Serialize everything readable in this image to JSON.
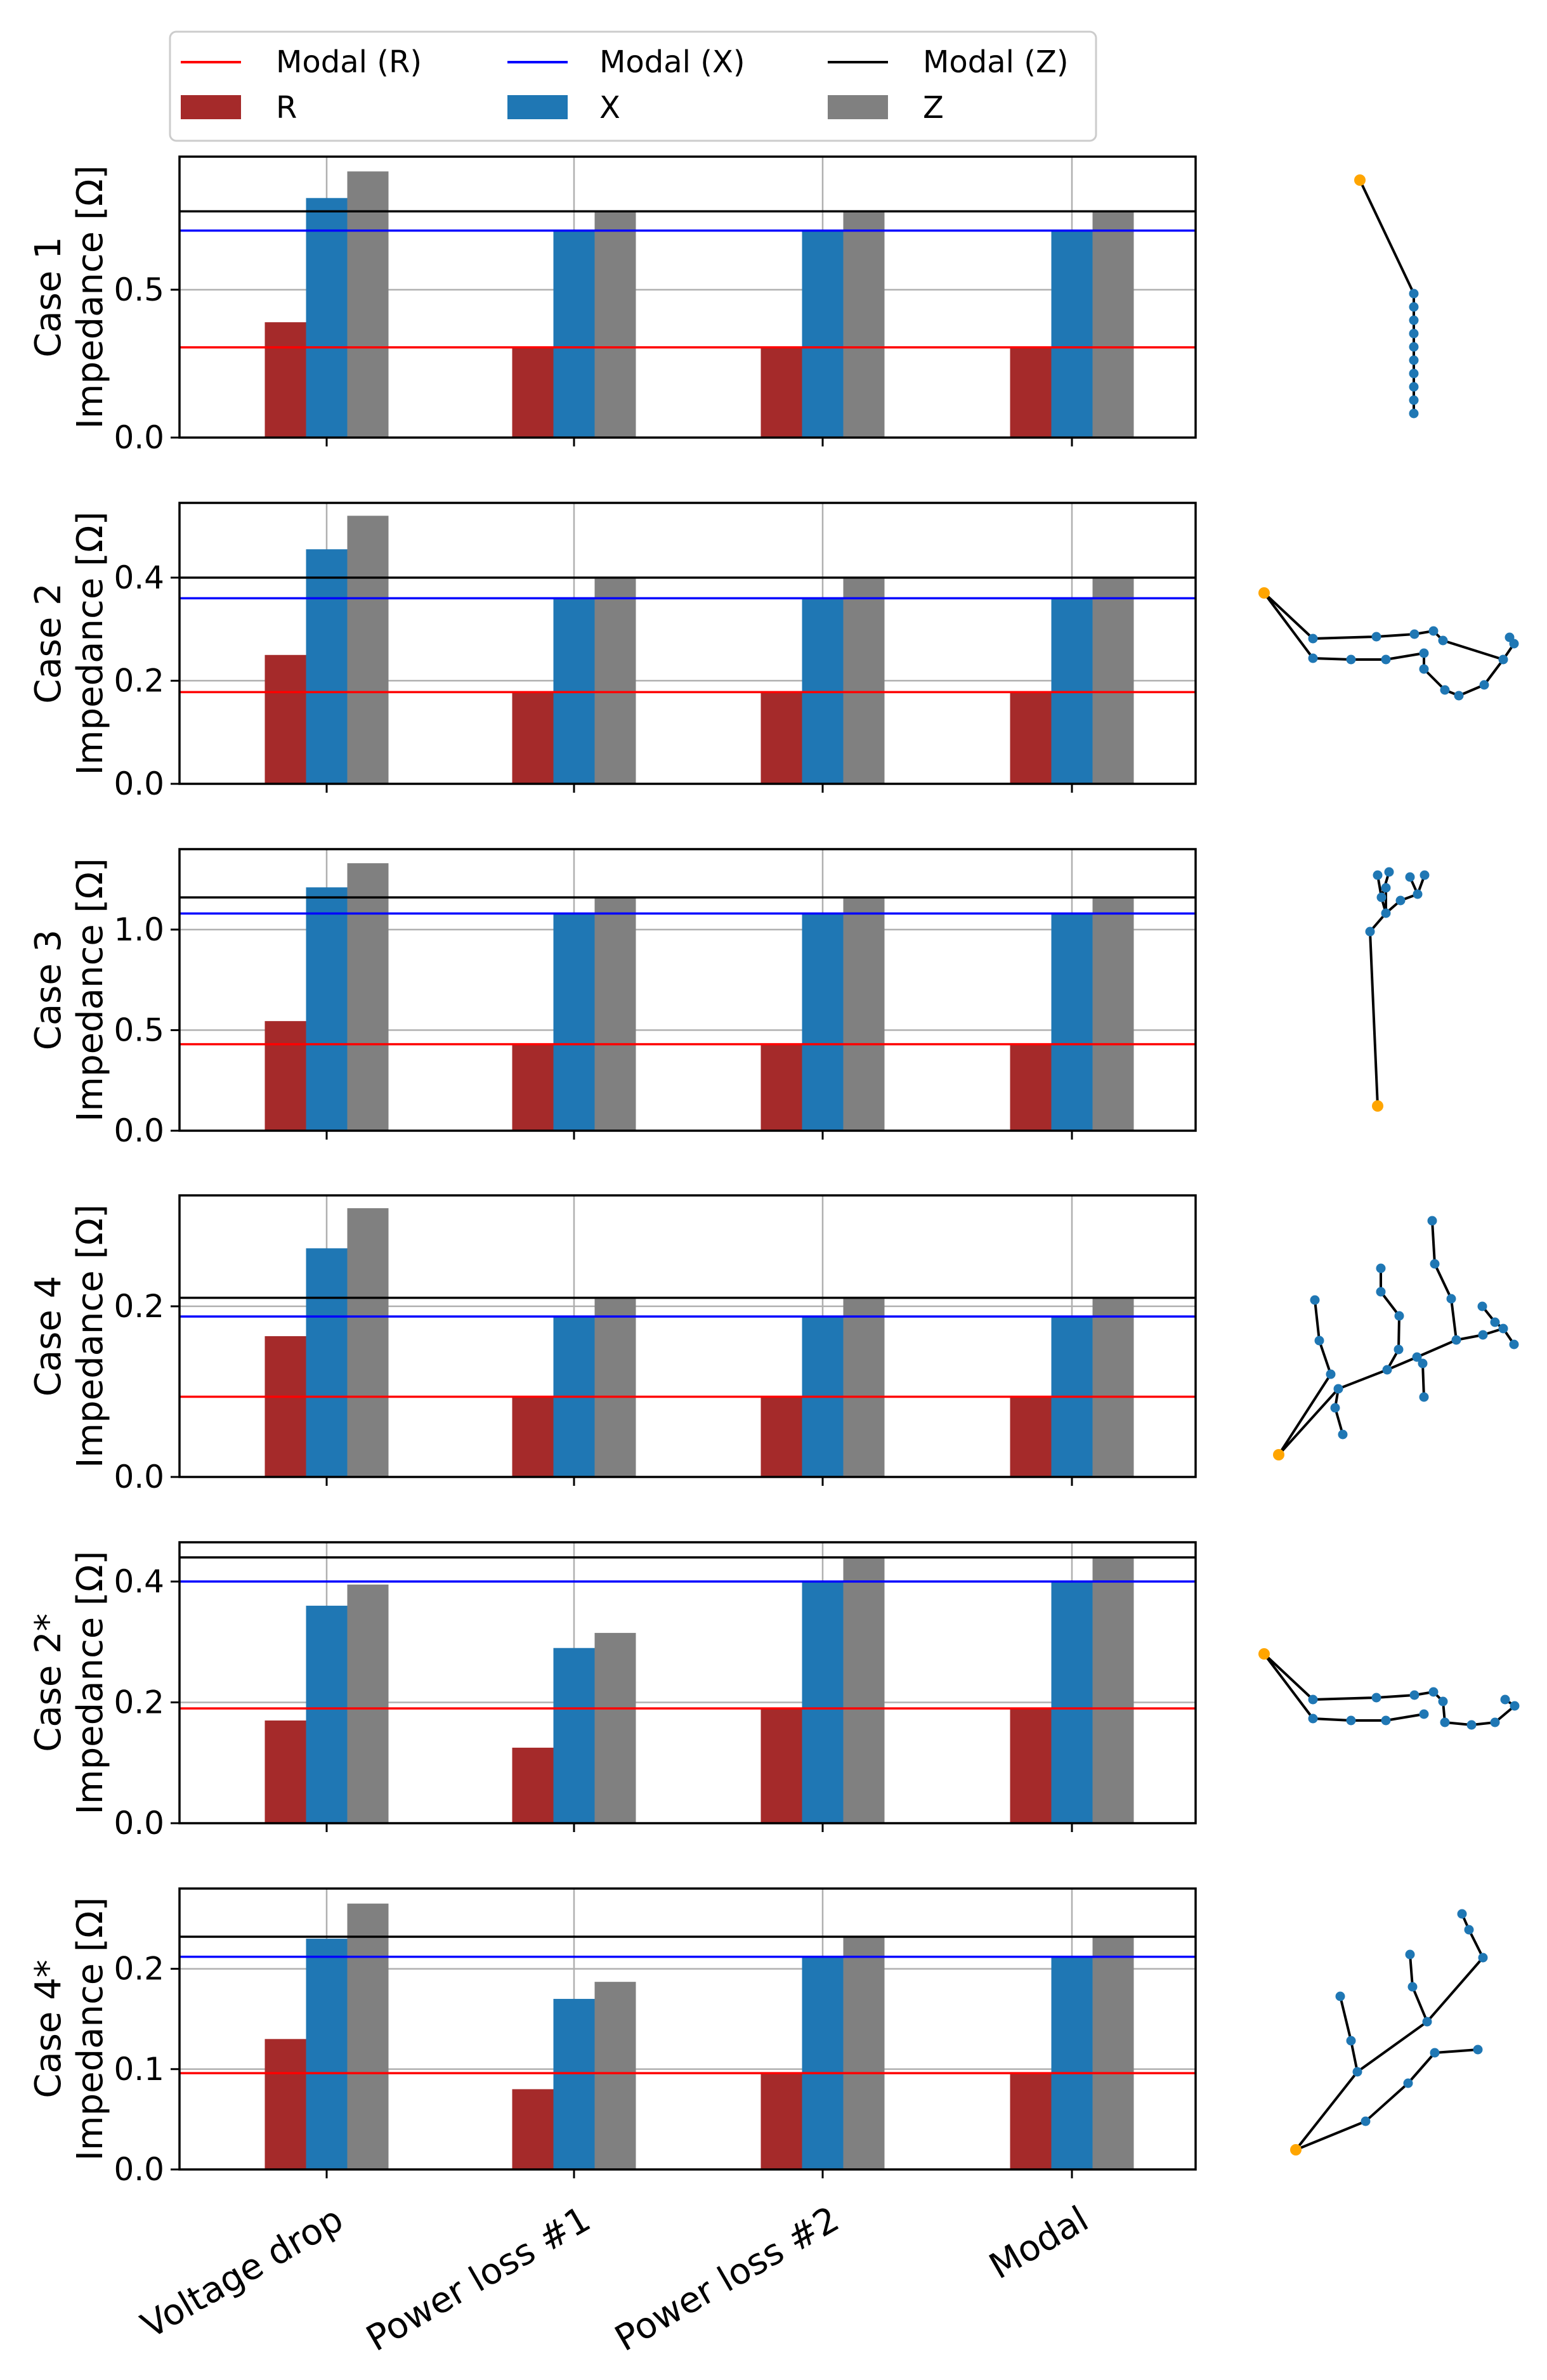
{
  "figure": {
    "legend": {
      "placement": "top-left",
      "entries": [
        {
          "label": "Modal (R)",
          "kind": "line",
          "color": "#ff0000"
        },
        {
          "label": "Modal (X)",
          "kind": "line",
          "color": "#0000ff"
        },
        {
          "label": "Modal (Z)",
          "kind": "line",
          "color": "#000000"
        },
        {
          "label": "R",
          "kind": "patch",
          "color": "#a52a2a"
        },
        {
          "label": "X",
          "kind": "patch",
          "color": "#1f77b4"
        },
        {
          "label": "Z",
          "kind": "patch",
          "color": "#808080"
        }
      ]
    },
    "colors": {
      "R": "#a52a2a",
      "X": "#1f77b4",
      "Z": "#808080",
      "modal_R": "#ff0000",
      "modal_X": "#0000ff",
      "modal_Z": "#000000",
      "node": "#1f77b4",
      "root_node": "#ffa500",
      "grid": "#b0b0b0"
    }
  },
  "chart_data": [
    {
      "type": "bar",
      "title": "",
      "xlabel": "",
      "ylabel": "Case 1\nImpedance [Ω]",
      "categories": [
        "Voltage drop",
        "Power loss #1",
        "Power loss #2",
        "Modal"
      ],
      "series": [
        {
          "name": "R",
          "values": [
            0.39,
            0.305,
            0.305,
            0.305
          ]
        },
        {
          "name": "X",
          "values": [
            0.81,
            0.7,
            0.7,
            0.7
          ]
        },
        {
          "name": "Z",
          "values": [
            0.9,
            0.765,
            0.765,
            0.765
          ]
        }
      ],
      "modal_lines": {
        "R": 0.305,
        "X": 0.7,
        "Z": 0.765
      },
      "ylim": [
        0,
        0.95
      ],
      "yticks": [
        0.0,
        0.5
      ],
      "ytick_labels": [
        "0.0",
        "0.5"
      ],
      "grid": true
    },
    {
      "type": "bar",
      "title": "",
      "xlabel": "",
      "ylabel": "Case 2\nImpedance [Ω]",
      "categories": [
        "Voltage drop",
        "Power loss #1",
        "Power loss #2",
        "Modal"
      ],
      "series": [
        {
          "name": "R",
          "values": [
            0.25,
            0.178,
            0.178,
            0.178
          ]
        },
        {
          "name": "X",
          "values": [
            0.455,
            0.36,
            0.36,
            0.36
          ]
        },
        {
          "name": "Z",
          "values": [
            0.52,
            0.4,
            0.4,
            0.4
          ]
        }
      ],
      "modal_lines": {
        "R": 0.178,
        "X": 0.36,
        "Z": 0.4
      },
      "ylim": [
        0,
        0.545
      ],
      "yticks": [
        0.0,
        0.2,
        0.4
      ],
      "ytick_labels": [
        "0.0",
        "0.2",
        "0.4"
      ],
      "grid": true
    },
    {
      "type": "bar",
      "title": "",
      "xlabel": "",
      "ylabel": "Case 3\nImpedance [Ω]",
      "categories": [
        "Voltage drop",
        "Power loss #1",
        "Power loss #2",
        "Modal"
      ],
      "series": [
        {
          "name": "R",
          "values": [
            0.545,
            0.43,
            0.43,
            0.43
          ]
        },
        {
          "name": "X",
          "values": [
            1.21,
            1.08,
            1.08,
            1.08
          ]
        },
        {
          "name": "Z",
          "values": [
            1.33,
            1.16,
            1.16,
            1.16
          ]
        }
      ],
      "modal_lines": {
        "R": 0.43,
        "X": 1.08,
        "Z": 1.16
      },
      "ylim": [
        0,
        1.4
      ],
      "yticks": [
        0.0,
        0.5,
        1.0
      ],
      "ytick_labels": [
        "0.0",
        "0.5",
        "1.0"
      ],
      "grid": true
    },
    {
      "type": "bar",
      "title": "",
      "xlabel": "",
      "ylabel": "Case 4\nImpedance [Ω]",
      "categories": [
        "Voltage drop",
        "Power loss #1",
        "Power loss #2",
        "Modal"
      ],
      "series": [
        {
          "name": "R",
          "values": [
            0.165,
            0.094,
            0.094,
            0.094
          ]
        },
        {
          "name": "X",
          "values": [
            0.268,
            0.188,
            0.188,
            0.188
          ]
        },
        {
          "name": "Z",
          "values": [
            0.315,
            0.21,
            0.21,
            0.21
          ]
        }
      ],
      "modal_lines": {
        "R": 0.094,
        "X": 0.188,
        "Z": 0.21
      },
      "ylim": [
        0,
        0.33
      ],
      "yticks": [
        0.0,
        0.2
      ],
      "ytick_labels": [
        "0.0",
        "0.2"
      ],
      "grid": true
    },
    {
      "type": "bar",
      "title": "",
      "xlabel": "",
      "ylabel": "Case 2*\nImpedance [Ω]",
      "categories": [
        "Voltage drop",
        "Power loss #1",
        "Power loss #2",
        "Modal"
      ],
      "series": [
        {
          "name": "R",
          "values": [
            0.17,
            0.125,
            0.19,
            0.19
          ]
        },
        {
          "name": "X",
          "values": [
            0.36,
            0.29,
            0.4,
            0.4
          ]
        },
        {
          "name": "Z",
          "values": [
            0.395,
            0.315,
            0.44,
            0.44
          ]
        }
      ],
      "modal_lines": {
        "R": 0.19,
        "X": 0.4,
        "Z": 0.44
      },
      "ylim": [
        0,
        0.465
      ],
      "yticks": [
        0.0,
        0.2,
        0.4
      ],
      "ytick_labels": [
        "0.0",
        "0.2",
        "0.4"
      ],
      "grid": true
    },
    {
      "type": "bar",
      "title": "",
      "xlabel": "",
      "ylabel": "Case 4*\nImpedance [Ω]",
      "categories": [
        "Voltage drop",
        "Power loss #1",
        "Power loss #2",
        "Modal"
      ],
      "series": [
        {
          "name": "R",
          "values": [
            0.13,
            0.08,
            0.096,
            0.096
          ]
        },
        {
          "name": "X",
          "values": [
            0.23,
            0.17,
            0.212,
            0.212
          ]
        },
        {
          "name": "Z",
          "values": [
            0.265,
            0.187,
            0.232,
            0.232
          ]
        }
      ],
      "modal_lines": {
        "R": 0.096,
        "X": 0.212,
        "Z": 0.232
      },
      "ylim": [
        0,
        0.28
      ],
      "yticks": [
        0.0,
        0.1,
        0.2
      ],
      "ytick_labels": [
        "0.0",
        "0.1",
        "0.2"
      ],
      "grid": true
    }
  ]
}
